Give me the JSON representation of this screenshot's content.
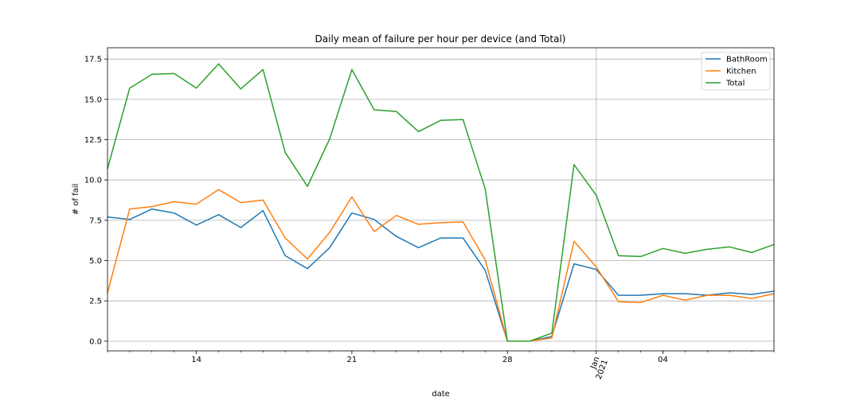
{
  "chart_data": {
    "type": "line",
    "title": "Daily mean of failure per hour per device (and Total)",
    "xlabel": "date",
    "ylabel": "# of fail",
    "ylim": [
      -0.6,
      18.2
    ],
    "yticks": [
      "0.0",
      "2.5",
      "5.0",
      "7.5",
      "10.0",
      "12.5",
      "15.0",
      "17.5"
    ],
    "ytick_values": [
      0,
      2.5,
      5,
      7.5,
      10,
      12.5,
      15,
      17.5
    ],
    "xticks": [
      {
        "day": 4,
        "label": "14"
      },
      {
        "day": 11,
        "label": "21"
      },
      {
        "day": 18,
        "label": "28"
      },
      {
        "day": 22,
        "label": "Jan\n2021",
        "rotated": true,
        "grid": true
      },
      {
        "day": 25,
        "label": "04"
      }
    ],
    "x_start": "2020-12-10",
    "x_end": "2021-01-09",
    "grid": true,
    "legend_position": "top-right",
    "series": [
      {
        "name": "BathRoom",
        "color": "#1f77b4",
        "values": [
          7.7,
          7.55,
          8.2,
          7.95,
          7.2,
          7.85,
          7.05,
          8.1,
          5.3,
          4.5,
          5.8,
          7.95,
          7.55,
          6.5,
          5.8,
          6.4,
          6.4,
          4.4,
          0.0,
          0.0,
          0.3,
          4.8,
          4.45,
          2.85,
          2.85,
          2.95,
          2.95,
          2.85,
          3.0,
          2.9,
          3.1
        ]
      },
      {
        "name": "Kitchen",
        "color": "#ff7f0e",
        "values": [
          3.0,
          8.2,
          8.35,
          8.65,
          8.5,
          9.4,
          8.6,
          8.75,
          6.4,
          5.1,
          6.75,
          8.95,
          6.8,
          7.8,
          7.25,
          7.35,
          7.4,
          5.05,
          0.0,
          0.0,
          0.2,
          6.2,
          4.6,
          2.45,
          2.4,
          2.85,
          2.55,
          2.85,
          2.85,
          2.65,
          2.95
        ]
      },
      {
        "name": "Total",
        "color": "#2ca02c",
        "values": [
          10.7,
          15.7,
          16.55,
          16.6,
          15.7,
          17.2,
          15.65,
          16.85,
          11.7,
          9.6,
          12.55,
          16.85,
          14.35,
          14.25,
          13.0,
          13.7,
          13.75,
          9.45,
          0.0,
          0.0,
          0.5,
          10.95,
          9.05,
          5.3,
          5.25,
          5.75,
          5.45,
          5.7,
          5.85,
          5.5,
          6.0
        ]
      }
    ]
  }
}
